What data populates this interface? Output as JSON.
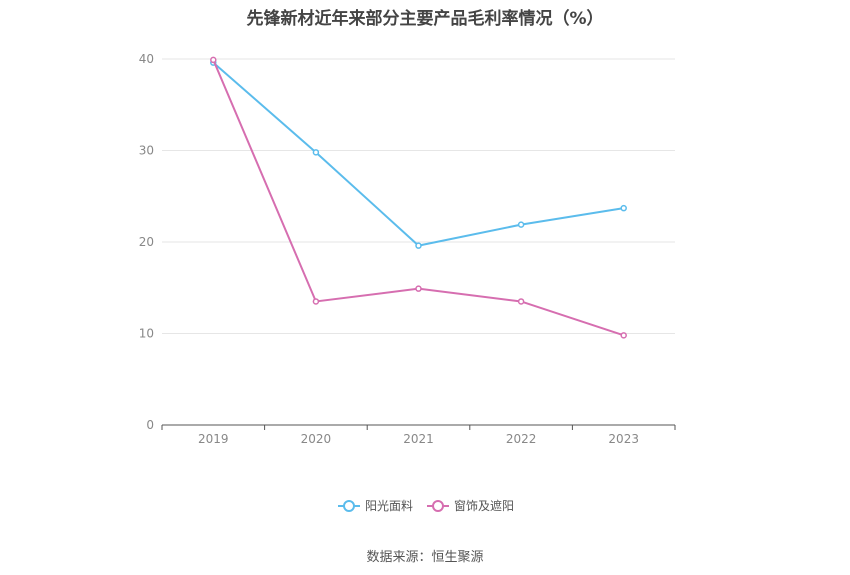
{
  "chart_data": {
    "type": "line",
    "title": "先锋新材近年来部分主要产品毛利率情况（%）",
    "x": [
      "2019",
      "2020",
      "2021",
      "2022",
      "2023"
    ],
    "yticks": [
      0,
      10,
      20,
      30,
      40
    ],
    "ylim": [
      0,
      40
    ],
    "grid": true,
    "legend_position": "bottom-center",
    "series": [
      {
        "name": "阳光面料",
        "color": "#5bbcec",
        "values": [
          39.6,
          29.8,
          19.6,
          21.9,
          23.7
        ]
      },
      {
        "name": "窗饰及遮阳",
        "color": "#d66eb0",
        "values": [
          39.9,
          13.5,
          14.9,
          13.5,
          9.8
        ]
      }
    ]
  },
  "source": "数据来源：恒生聚源"
}
